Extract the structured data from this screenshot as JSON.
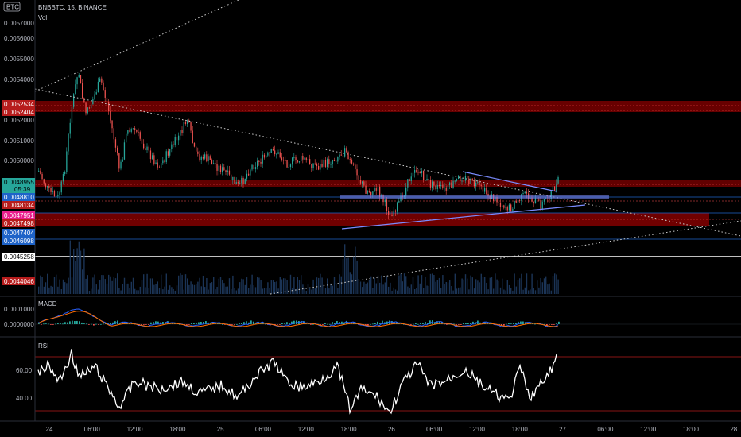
{
  "header": {
    "symbol_badge": "BTC",
    "title": "BNBBTC, 15, BINANCE",
    "volume_label": "Vol"
  },
  "colors": {
    "background": "#000000",
    "up": "#26a69a",
    "down": "#ef5350",
    "zone": "#8b0000",
    "trendline": "#7b8cff",
    "rsi_line": "#ffffff",
    "macd_line": "#2962ff",
    "signal_line": "#ff6d00"
  },
  "price_axis": {
    "ticks": [
      "0.0057000",
      "0.0056000",
      "0.0055000",
      "0.0054000",
      "0.0052000",
      "0.0051000",
      "0.0050000"
    ],
    "range": [
      0.0043,
      0.0057
    ]
  },
  "price_tags": [
    {
      "label": "0.0052534",
      "bg": "#b71c1c",
      "fg": "#ffffff"
    },
    {
      "label": "0.0052404",
      "bg": "#b71c1c",
      "fg": "#ffffff"
    },
    {
      "label": "0.0048955",
      "bg": "#26a69a",
      "fg": "#000000"
    },
    {
      "label": "05:39",
      "bg": "#26a69a",
      "fg": "#000000"
    },
    {
      "label": "0.0048810",
      "bg": "#1e63c8",
      "fg": "#ffffff"
    },
    {
      "label": "0.0048134",
      "bg": "#b71c1c",
      "fg": "#ffffff"
    },
    {
      "label": "0.0047951",
      "bg": "#e91e8c",
      "fg": "#ffffff"
    },
    {
      "label": "0.0047498",
      "bg": "#b71c1c",
      "fg": "#ffffff"
    },
    {
      "label": "0.0047404",
      "bg": "#1e63c8",
      "fg": "#ffffff"
    },
    {
      "label": "0.0046098",
      "bg": "#1e63c8",
      "fg": "#ffffff"
    },
    {
      "label": "0.0045258",
      "bg": "#ffffff",
      "fg": "#000000"
    },
    {
      "label": "0.0044046",
      "bg": "#b71c1c",
      "fg": "#ffffff"
    }
  ],
  "time_axis": [
    "24",
    "06:00",
    "12:00",
    "18:00",
    "25",
    "06:00",
    "12:00",
    "18:00",
    "26",
    "06:00",
    "12:00",
    "18:00",
    "27",
    "06:00",
    "12:00",
    "18:00",
    "28"
  ],
  "macd": {
    "label": "MACD",
    "ticks": [
      "0.0001000",
      "0.0000000"
    ]
  },
  "rsi": {
    "label": "RSI",
    "ticks": [
      "60.00",
      "40.00"
    ],
    "upper_band": 70,
    "lower_band": 30
  }
}
